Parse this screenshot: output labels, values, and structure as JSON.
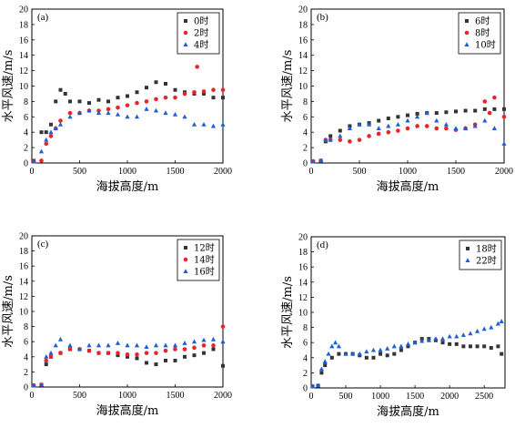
{
  "chart_data": [
    {
      "type": "scatter",
      "panel": "(a)",
      "xlabel": "海拔高度/m",
      "ylabel": "水平风速/m/s",
      "xlim": [
        0,
        2000
      ],
      "ylim": [
        0,
        20
      ],
      "xticks": [
        0,
        500,
        1000,
        1500,
        2000
      ],
      "yticks": [
        0,
        2,
        4,
        6,
        8,
        10,
        12,
        14,
        16,
        18,
        20
      ],
      "legend_position": "top-right",
      "series": [
        {
          "name": "0时",
          "color": "#333333",
          "marker": "square",
          "x": [
            20,
            100,
            150,
            200,
            250,
            300,
            350,
            400,
            500,
            600,
            700,
            800,
            900,
            1000,
            1100,
            1200,
            1300,
            1400,
            1500,
            1600,
            1700,
            1800,
            1900,
            2000
          ],
          "y": [
            0.3,
            4.0,
            4.0,
            5.0,
            8.0,
            9.5,
            9.0,
            8.0,
            8.0,
            7.8,
            8.2,
            8.0,
            8.5,
            8.7,
            9.2,
            9.8,
            10.5,
            10.3,
            9.5,
            9.2,
            9.0,
            9.0,
            8.5,
            8.5
          ]
        },
        {
          "name": "2时",
          "color": "#e8262a",
          "marker": "circle",
          "x": [
            20,
            100,
            150,
            200,
            250,
            300,
            400,
            500,
            600,
            700,
            800,
            900,
            1000,
            1100,
            1200,
            1300,
            1400,
            1500,
            1600,
            1700,
            1730,
            1800,
            1900,
            2000
          ],
          "y": [
            0.2,
            0.3,
            2.5,
            3.5,
            4.5,
            5.5,
            6.5,
            6.5,
            6.8,
            6.8,
            7.0,
            7.2,
            7.5,
            7.8,
            8.0,
            8.3,
            8.5,
            8.5,
            9.0,
            9.2,
            12.5,
            9.3,
            9.5,
            9.5
          ]
        },
        {
          "name": "4时",
          "color": "#1f5fd6",
          "marker": "triangle",
          "x": [
            20,
            100,
            150,
            200,
            250,
            300,
            400,
            500,
            600,
            700,
            800,
            900,
            1000,
            1100,
            1200,
            1300,
            1400,
            1500,
            1600,
            1700,
            1800,
            1900,
            2000
          ],
          "y": [
            0.2,
            1.5,
            3.0,
            4.0,
            4.5,
            5.0,
            6.0,
            6.5,
            6.8,
            6.5,
            6.5,
            6.3,
            6.0,
            6.0,
            7.0,
            6.8,
            6.5,
            6.3,
            6.0,
            5.0,
            5.0,
            4.8,
            5.0
          ]
        }
      ]
    },
    {
      "type": "scatter",
      "panel": "(b)",
      "xlabel": "海拔高度/m",
      "ylabel": "水平风速/m/s",
      "xlim": [
        0,
        2000
      ],
      "ylim": [
        0,
        20
      ],
      "xticks": [
        0,
        500,
        1000,
        1500,
        2000
      ],
      "yticks": [
        0,
        2,
        4,
        6,
        8,
        10,
        12,
        14,
        16,
        18,
        20
      ],
      "legend_position": "top-right",
      "series": [
        {
          "name": "6时",
          "color": "#333333",
          "marker": "square",
          "x": [
            20,
            100,
            150,
            200,
            300,
            400,
            500,
            600,
            700,
            800,
            900,
            1000,
            1100,
            1200,
            1300,
            1400,
            1500,
            1600,
            1700,
            1800,
            1900,
            2000
          ],
          "y": [
            0.2,
            0.3,
            2.8,
            3.5,
            4.2,
            4.8,
            5.0,
            5.2,
            5.5,
            5.8,
            6.0,
            6.2,
            6.4,
            6.5,
            6.5,
            6.6,
            6.7,
            6.8,
            6.8,
            7.0,
            7.0,
            7.0
          ]
        },
        {
          "name": "8时",
          "color": "#e8262a",
          "marker": "circle",
          "x": [
            20,
            100,
            150,
            200,
            300,
            400,
            500,
            600,
            700,
            800,
            900,
            1000,
            1100,
            1200,
            1300,
            1400,
            1500,
            1600,
            1700,
            1800,
            1850,
            1900,
            2000
          ],
          "y": [
            0.2,
            0.3,
            3.0,
            3.0,
            3.0,
            2.8,
            3.0,
            3.5,
            3.8,
            4.0,
            4.2,
            4.5,
            4.8,
            4.8,
            4.5,
            4.5,
            4.3,
            4.5,
            5.0,
            8.0,
            6.5,
            8.5,
            6.0
          ]
        },
        {
          "name": "10时",
          "color": "#1f5fd6",
          "marker": "triangle",
          "x": [
            20,
            100,
            150,
            200,
            300,
            400,
            500,
            600,
            700,
            800,
            900,
            1000,
            1100,
            1200,
            1300,
            1400,
            1500,
            1600,
            1700,
            1800,
            1900,
            2000
          ],
          "y": [
            0.2,
            0.3,
            3.0,
            3.0,
            3.5,
            4.5,
            5.0,
            5.0,
            4.5,
            4.8,
            5.0,
            5.5,
            6.0,
            6.5,
            5.5,
            5.0,
            4.5,
            4.5,
            4.8,
            5.5,
            4.5,
            2.5
          ]
        }
      ]
    },
    {
      "type": "scatter",
      "panel": "(c)",
      "xlabel": "海拔高度/m",
      "ylabel": "水平风速/m/s",
      "xlim": [
        0,
        2000
      ],
      "ylim": [
        0,
        20
      ],
      "xticks": [
        0,
        500,
        1000,
        1500,
        2000
      ],
      "yticks": [
        0,
        2,
        4,
        6,
        8,
        10,
        12,
        14,
        16,
        18,
        20
      ],
      "legend_position": "top-right",
      "series": [
        {
          "name": "12时",
          "color": "#333333",
          "marker": "square",
          "x": [
            20,
            100,
            150,
            200,
            300,
            400,
            500,
            600,
            700,
            800,
            900,
            1000,
            1100,
            1200,
            1300,
            1400,
            1500,
            1600,
            1700,
            1800,
            1900,
            2000
          ],
          "y": [
            0.2,
            0.3,
            3.0,
            4.0,
            4.5,
            5.0,
            5.0,
            4.8,
            4.5,
            4.5,
            4.2,
            4.0,
            3.8,
            3.2,
            3.0,
            3.5,
            3.5,
            4.0,
            4.2,
            4.5,
            5.0,
            2.8
          ]
        },
        {
          "name": "14时",
          "color": "#e8262a",
          "marker": "circle",
          "x": [
            20,
            100,
            150,
            200,
            300,
            400,
            500,
            600,
            700,
            800,
            900,
            1000,
            1100,
            1200,
            1300,
            1400,
            1500,
            1600,
            1700,
            1800,
            1900,
            2000
          ],
          "y": [
            0.2,
            0.3,
            3.5,
            4.0,
            4.5,
            5.0,
            5.0,
            4.8,
            4.5,
            4.5,
            4.5,
            4.3,
            4.3,
            4.5,
            4.5,
            4.8,
            5.0,
            5.0,
            5.2,
            5.5,
            5.5,
            8.0
          ]
        },
        {
          "name": "16时",
          "color": "#1f5fd6",
          "marker": "triangle",
          "x": [
            20,
            100,
            150,
            200,
            250,
            300,
            400,
            500,
            600,
            700,
            800,
            900,
            1000,
            1100,
            1200,
            1300,
            1400,
            1500,
            1600,
            1700,
            1800,
            1900,
            2000
          ],
          "y": [
            0.2,
            0.3,
            4.0,
            4.5,
            5.5,
            6.3,
            5.5,
            5.0,
            5.5,
            5.5,
            5.5,
            5.8,
            5.5,
            5.5,
            5.3,
            5.5,
            5.5,
            5.5,
            5.8,
            6.0,
            6.2,
            6.3,
            6.0
          ]
        }
      ]
    },
    {
      "type": "scatter",
      "panel": "(d)",
      "xlabel": "海拔高度/m",
      "ylabel": "水平风速/m/s",
      "xlim": [
        0,
        2800
      ],
      "ylim": [
        0,
        20
      ],
      "xticks": [
        0,
        500,
        1000,
        1500,
        2000,
        2500
      ],
      "yticks": [
        0,
        2,
        4,
        6,
        8,
        10,
        12,
        14,
        16,
        18,
        20
      ],
      "legend_position": "top-right",
      "series": [
        {
          "name": "18时",
          "color": "#333333",
          "marker": "square",
          "x": [
            20,
            100,
            150,
            200,
            300,
            400,
            500,
            600,
            700,
            800,
            900,
            1000,
            1100,
            1200,
            1300,
            1400,
            1500,
            1600,
            1700,
            1800,
            1900,
            2000,
            2100,
            2200,
            2300,
            2400,
            2500,
            2600,
            2700,
            2750
          ],
          "y": [
            0.2,
            0.3,
            2.0,
            3.0,
            4.0,
            4.5,
            4.5,
            4.5,
            4.3,
            4.0,
            4.0,
            4.5,
            4.3,
            4.5,
            5.0,
            5.5,
            6.0,
            6.5,
            6.5,
            6.3,
            6.0,
            5.8,
            5.8,
            5.5,
            5.5,
            5.5,
            5.5,
            5.3,
            5.5,
            4.5
          ]
        },
        {
          "name": "22时",
          "color": "#1f5fd6",
          "marker": "triangle",
          "x": [
            20,
            100,
            150,
            200,
            250,
            300,
            350,
            400,
            500,
            600,
            700,
            800,
            900,
            1000,
            1100,
            1200,
            1300,
            1400,
            1500,
            1600,
            1700,
            1800,
            1900,
            2000,
            2100,
            2200,
            2300,
            2400,
            2500,
            2600,
            2700,
            2750
          ],
          "y": [
            0.2,
            0.3,
            2.5,
            3.5,
            4.5,
            5.5,
            6.0,
            5.5,
            4.5,
            4.5,
            4.5,
            4.8,
            5.0,
            5.0,
            5.2,
            5.5,
            5.5,
            5.8,
            6.0,
            6.2,
            6.3,
            6.5,
            6.5,
            6.8,
            6.8,
            7.0,
            7.2,
            7.5,
            7.8,
            8.0,
            8.5,
            8.8
          ]
        }
      ]
    }
  ]
}
